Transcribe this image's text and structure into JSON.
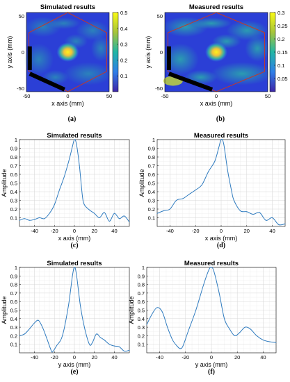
{
  "chart_data": [
    {
      "id": "a",
      "type": "heatmap",
      "caption": "(a)",
      "title": "Simulated results",
      "xlabel": "x axis (mm)",
      "ylabel": "y axis (mm)",
      "xlim": [
        -50,
        50
      ],
      "ylim": [
        -55,
        55
      ],
      "xticks": [
        -50,
        0,
        50
      ],
      "yticks": [
        -50,
        0,
        50
      ],
      "colorbar": {
        "min": 0,
        "max": 0.5,
        "ticks": [
          0.1,
          0.2,
          0.3,
          0.4,
          0.5
        ]
      },
      "peak": {
        "x": 0,
        "y": 0,
        "value": 0.5
      },
      "colors": {
        "low": "#2b3fd6",
        "mid": "#2fb3a8",
        "high": "#f8e21c",
        "outline": "#c0392b",
        "probe": "#000000"
      }
    },
    {
      "id": "b",
      "type": "heatmap",
      "caption": "(b)",
      "title": "Measured results",
      "xlabel": "x axis (mm)",
      "ylabel": "y axis (mm)",
      "xlim": [
        -50,
        50
      ],
      "ylim": [
        -55,
        55
      ],
      "xticks": [
        -50,
        0,
        50
      ],
      "yticks": [
        -50,
        0,
        50
      ],
      "colorbar": {
        "min": 0,
        "max": 0.3,
        "ticks": [
          0.05,
          0.1,
          0.15,
          0.2,
          0.25,
          0.3
        ]
      },
      "peak": {
        "x": 0,
        "y": 0,
        "value": 0.3
      },
      "colors": {
        "low": "#2b3fd6",
        "mid": "#2fb3a8",
        "high": "#f8e21c",
        "outline": "#c0392b",
        "probe": "#000000"
      }
    },
    {
      "id": "c",
      "type": "line",
      "caption": "(c)",
      "title": "Simulated results",
      "xlabel": "x axis (mm)",
      "ylabel": "Amplitude",
      "xlim": [
        -55,
        55
      ],
      "ylim": [
        0,
        1
      ],
      "xticks": [
        -40,
        -20,
        0,
        20,
        40
      ],
      "yticks": [
        0.1,
        0.2,
        0.3,
        0.4,
        0.5,
        0.6,
        0.7,
        0.8,
        0.9,
        1
      ],
      "x": [
        -55,
        -50,
        -45,
        -40,
        -35,
        -30,
        -25,
        -20,
        -15,
        -10,
        -5,
        -2,
        0,
        2,
        5,
        8,
        10,
        15,
        20,
        25,
        30,
        35,
        40,
        45,
        50,
        55
      ],
      "y": [
        0.07,
        0.09,
        0.07,
        0.08,
        0.1,
        0.09,
        0.15,
        0.25,
        0.42,
        0.58,
        0.78,
        0.92,
        1.0,
        0.95,
        0.7,
        0.35,
        0.25,
        0.19,
        0.15,
        0.1,
        0.16,
        0.06,
        0.15,
        0.09,
        0.12,
        0.05
      ],
      "color": "#2f7bbf"
    },
    {
      "id": "d",
      "type": "line",
      "caption": "(d)",
      "title": "Measured results",
      "xlabel": "x axis (mm)",
      "ylabel": "Amplitude",
      "xlim": [
        -50,
        50
      ],
      "ylim": [
        0,
        1
      ],
      "xticks": [
        -40,
        -20,
        0,
        20,
        40
      ],
      "yticks": [
        0.1,
        0.2,
        0.3,
        0.4,
        0.5,
        0.6,
        0.7,
        0.8,
        0.9,
        1
      ],
      "x": [
        -50,
        -45,
        -40,
        -35,
        -30,
        -25,
        -20,
        -15,
        -10,
        -5,
        -2,
        0,
        2,
        5,
        8,
        10,
        15,
        20,
        25,
        30,
        35,
        40,
        45,
        50
      ],
      "y": [
        0.15,
        0.18,
        0.2,
        0.3,
        0.32,
        0.37,
        0.42,
        0.48,
        0.63,
        0.75,
        0.9,
        1.0,
        0.95,
        0.65,
        0.42,
        0.3,
        0.18,
        0.17,
        0.14,
        0.16,
        0.07,
        0.1,
        0.02,
        0.03
      ],
      "color": "#2f7bbf"
    },
    {
      "id": "e",
      "type": "line",
      "caption": "(e)",
      "title": "Simulated results",
      "xlabel": "y axis (mm)",
      "ylabel": "Amplitude",
      "xlim": [
        -55,
        55
      ],
      "ylim": [
        0,
        1
      ],
      "xticks": [
        -40,
        -20,
        0,
        20,
        40
      ],
      "yticks": [
        0.1,
        0.2,
        0.3,
        0.4,
        0.5,
        0.6,
        0.7,
        0.8,
        0.9,
        1
      ],
      "x": [
        -55,
        -50,
        -45,
        -40,
        -36,
        -32,
        -28,
        -24,
        -22,
        -18,
        -12,
        -6,
        -2,
        0,
        2,
        6,
        10,
        15,
        18,
        22,
        26,
        30,
        35,
        40,
        45,
        50,
        55
      ],
      "y": [
        0.2,
        0.22,
        0.28,
        0.35,
        0.38,
        0.3,
        0.18,
        0.05,
        0.01,
        0.08,
        0.2,
        0.55,
        0.9,
        1.0,
        0.92,
        0.55,
        0.3,
        0.1,
        0.12,
        0.22,
        0.18,
        0.15,
        0.1,
        0.08,
        0.07,
        0.02,
        0.03
      ],
      "color": "#2f7bbf"
    },
    {
      "id": "f",
      "type": "line",
      "caption": "(f)",
      "title": "Measured results",
      "xlabel": "y axis (mm)",
      "ylabel": "Amplitude",
      "xlim": [
        -50,
        50
      ],
      "ylim": [
        0,
        1
      ],
      "xticks": [
        -40,
        -20,
        0,
        20,
        40
      ],
      "yticks": [
        0.1,
        0.2,
        0.3,
        0.4,
        0.5,
        0.6,
        0.7,
        0.8,
        0.9,
        1
      ],
      "x": [
        -50,
        -46,
        -42,
        -38,
        -34,
        -30,
        -26,
        -24,
        -22,
        -18,
        -12,
        -6,
        -2,
        0,
        2,
        6,
        10,
        14,
        18,
        22,
        26,
        30,
        35,
        40,
        45,
        50
      ],
      "y": [
        0.33,
        0.45,
        0.53,
        0.48,
        0.3,
        0.15,
        0.07,
        0.05,
        0.08,
        0.25,
        0.5,
        0.8,
        0.97,
        1.0,
        0.95,
        0.7,
        0.4,
        0.28,
        0.2,
        0.24,
        0.3,
        0.28,
        0.2,
        0.15,
        0.13,
        0.12
      ],
      "color": "#2f7bbf"
    }
  ]
}
